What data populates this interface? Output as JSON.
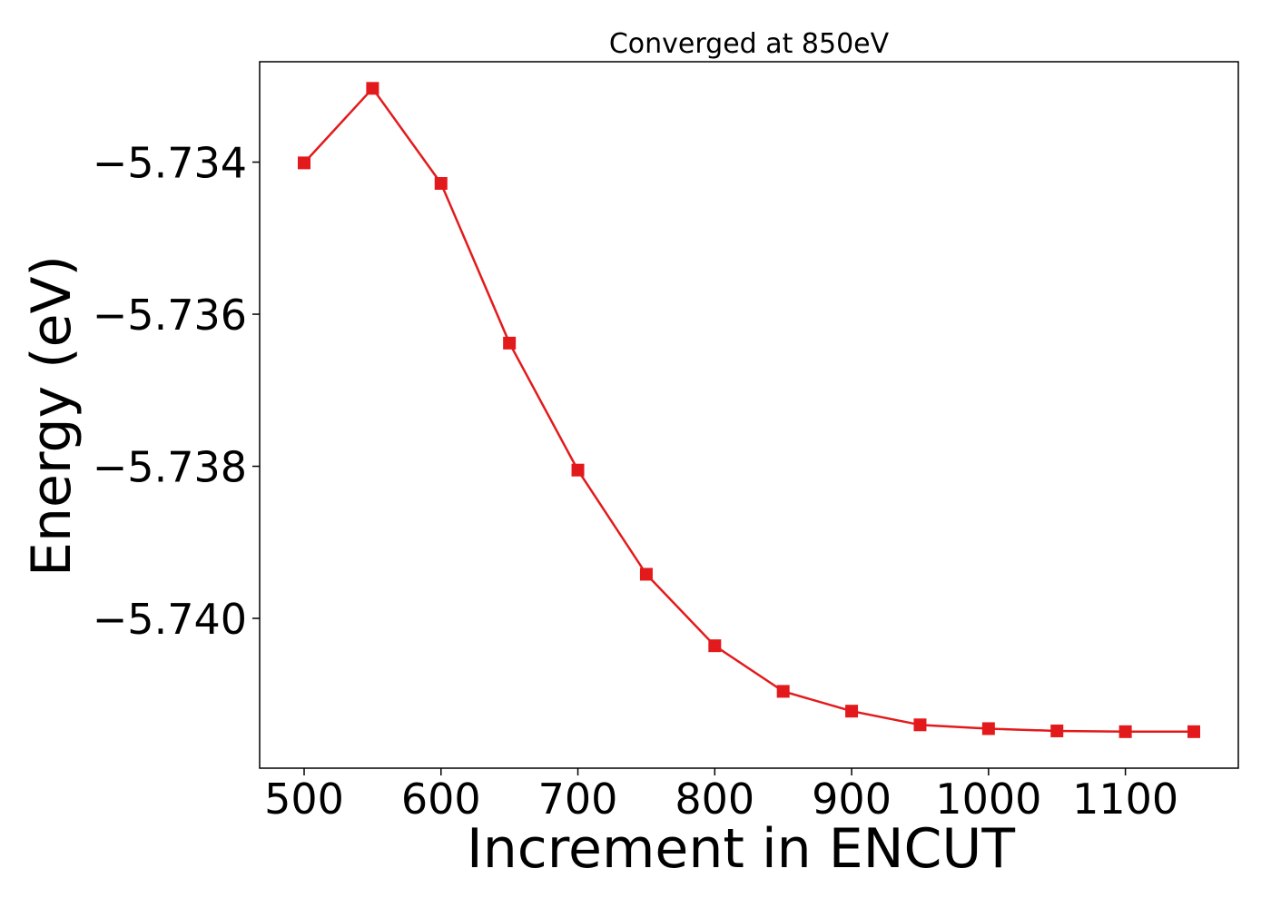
{
  "chart_data": {
    "type": "line",
    "title": "Converged at 850eV",
    "xlabel": "Increment in ENCUT",
    "ylabel": "Energy (eV)",
    "xlim": [
      467.5,
      1182.5
    ],
    "ylim": [
      -5.74197,
      -5.73268
    ],
    "x_ticks": [
      500,
      600,
      700,
      800,
      900,
      1000,
      1100
    ],
    "x_tick_labels": [
      "500",
      "600",
      "700",
      "800",
      "900",
      "1000",
      "1100"
    ],
    "y_ticks": [
      -5.734,
      -5.736,
      -5.738,
      -5.74
    ],
    "y_tick_labels": [
      "−5.734",
      "−5.736",
      "−5.738",
      "−5.740"
    ],
    "grid": false,
    "series": [
      {
        "marker": "square",
        "color": "#e31a1c",
        "x": [
          500,
          550,
          600,
          650,
          700,
          750,
          800,
          850,
          900,
          950,
          1000,
          1050,
          1100,
          1150
        ],
        "y": [
          -5.73401,
          -5.73303,
          -5.73428,
          -5.73638,
          -5.73805,
          -5.73942,
          -5.74036,
          -5.74096,
          -5.74122,
          -5.7414,
          -5.74145,
          -5.74148,
          -5.74149,
          -5.74149
        ]
      }
    ]
  }
}
